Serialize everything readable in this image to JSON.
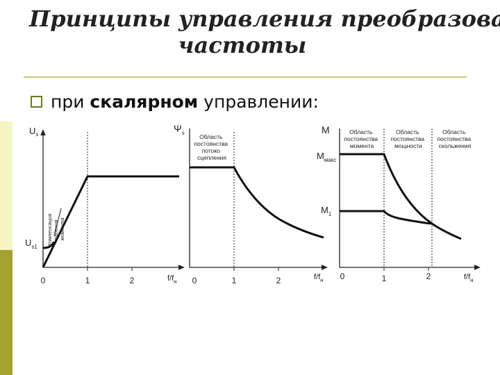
{
  "theme": {
    "sidebar_top": "#ffffff",
    "sidebar_mid": "#f6f3c4",
    "sidebar_bottom": "#a3a331",
    "rule_color": "#c9c77a",
    "bullet_color": "#6b7a1f"
  },
  "title": {
    "line1": "Принципы управления преобразовате",
    "line2": "частоты"
  },
  "bullet": {
    "icon": "square-bullet-icon",
    "pre": "при ",
    "bold": "скалярном",
    "post": " управлении:"
  },
  "diagram": {
    "chart1": {
      "y_label_main": "U",
      "y_label_sub": "s",
      "annotation": [
        "Компенсация",
        "падения",
        "момента"
      ],
      "u_label_main": "U",
      "u_label_sub": "s1",
      "x_ticks": [
        "0",
        "1",
        "2"
      ],
      "x_label_main": "f/f",
      "x_label_sub": "н"
    },
    "chart2": {
      "y_label_main": "Ψ",
      "y_label_sub": "s",
      "region_text": [
        "Область",
        "постоянства",
        "потоко",
        "сцепления"
      ],
      "x_ticks": [
        "0",
        "1",
        "2"
      ],
      "x_label_main": "f/f",
      "x_label_sub": "н"
    },
    "chart3": {
      "y_label": "M",
      "mmax_main": "M",
      "mmax_sub": "макс",
      "m1_main": "M",
      "m1_sub": "1",
      "region1": [
        "Область",
        "постоянства",
        "момента"
      ],
      "region2": [
        "Область",
        "постоянства",
        "мощности"
      ],
      "region3": [
        "Область",
        "постоянства",
        "скольжения"
      ],
      "x_ticks": [
        "0",
        "1",
        "2"
      ],
      "x_label_main": "f/f",
      "x_label_sub": "н"
    }
  }
}
